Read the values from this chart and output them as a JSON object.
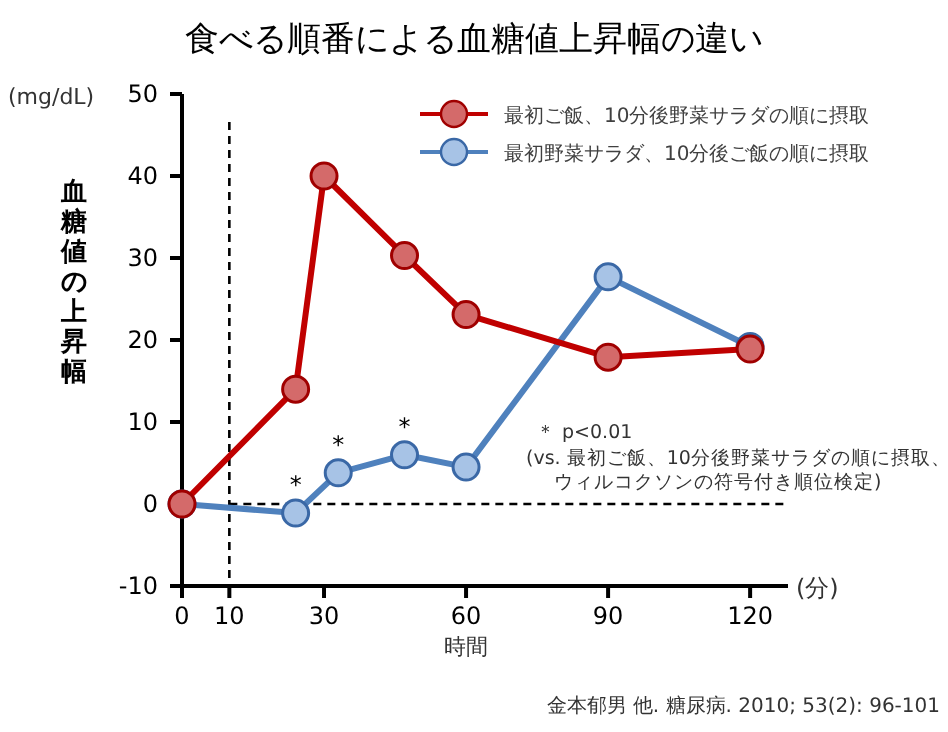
{
  "chart_data": {
    "type": "line",
    "title": "食べる順番による血糖値上昇幅の違い",
    "xlabel": "時間",
    "ylabel": "血糖値の上昇幅",
    "xlim": [
      0,
      128
    ],
    "xticks": [
      0,
      10,
      30,
      60,
      90,
      120
    ],
    "ylim": [
      -10,
      50
    ],
    "yticks": [
      -10,
      0,
      10,
      20,
      30,
      40,
      50
    ],
    "grid": false,
    "legend": "top right",
    "marker": "circle",
    "series": [
      {
        "name": "最初ご飯、10分後野菜サラダの順に摂取",
        "color": "#c00000",
        "x": [
          0,
          24,
          30,
          47,
          60,
          90,
          120
        ],
        "values": [
          0,
          14,
          40,
          30.3,
          23.1,
          17.9,
          18.9
        ]
      },
      {
        "name": "最初野菜サラダ、10分後ご飯の順に摂取",
        "color": "#4f81bd",
        "x": [
          0,
          24,
          33,
          47,
          60,
          90,
          120
        ],
        "values": [
          0,
          -1.1,
          3.8,
          6,
          4.5,
          27.7,
          19.2
        ]
      }
    ],
    "ref_lines": [
      {
        "axis": "x",
        "value": 10,
        "line_style": "dashed",
        "color": "#000000"
      },
      {
        "axis": "y",
        "value": 0,
        "line_style": "dashed",
        "color": "#000000"
      }
    ],
    "annotations": [
      "(mg/dL)",
      "(分)",
      "＊ p<0.01",
      "(vs. 最初ご飯、10分後野菜サラダの順に摂取、",
      "ウィルコクソンの符号付き順位検定)",
      "金本郁男 他. 糖尿病. 2010; 53(2): 96-101",
      {
        "text": "*",
        "x": 24,
        "y": -1.1
      },
      {
        "text": "*",
        "x": 33,
        "y": 3.8
      },
      {
        "text": "*",
        "x": 47,
        "y": 6
      }
    ]
  }
}
